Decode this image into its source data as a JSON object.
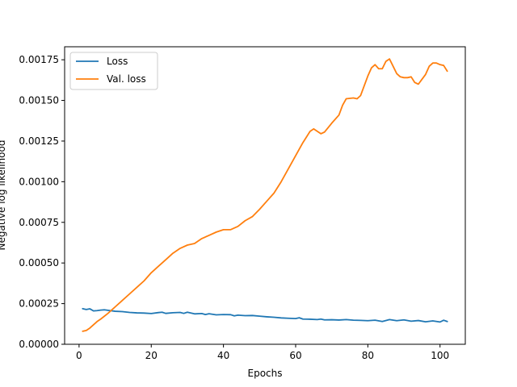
{
  "chart_data": {
    "type": "line",
    "title": "",
    "xlabel": "Epochs",
    "ylabel": "Negative log likelihood",
    "xlim": [
      -4,
      107
    ],
    "ylim": [
      0,
      0.00183
    ],
    "xticks": [
      0,
      20,
      40,
      60,
      80,
      100
    ],
    "yticks": [
      "0.00000",
      "0.00025",
      "0.00050",
      "0.00075",
      "0.00100",
      "0.00125",
      "0.00150",
      "0.00175"
    ],
    "legend": {
      "placement": "upper-left"
    },
    "grid": false,
    "series": [
      {
        "name": "Loss",
        "color": "#1f77b4",
        "x": [
          1,
          2,
          3,
          4,
          5,
          6,
          7,
          8,
          9,
          10,
          12,
          14,
          16,
          18,
          20,
          22,
          23,
          24,
          26,
          28,
          29,
          30,
          32,
          34,
          35,
          36,
          38,
          40,
          42,
          43,
          44,
          46,
          48,
          50,
          52,
          54,
          56,
          58,
          60,
          61,
          62,
          64,
          66,
          67,
          68,
          70,
          72,
          74,
          76,
          78,
          80,
          82,
          84,
          86,
          88,
          90,
          92,
          94,
          96,
          98,
          100,
          101,
          102
        ],
        "y": [
          0.000219,
          0.000214,
          0.000218,
          0.000205,
          0.000207,
          0.00021,
          0.000212,
          0.000209,
          0.000206,
          0.000203,
          0.000201,
          0.000196,
          0.000193,
          0.000192,
          0.000189,
          0.000195,
          0.000197,
          0.00019,
          0.000194,
          0.000196,
          0.00019,
          0.000197,
          0.000187,
          0.000189,
          0.000183,
          0.000188,
          0.000181,
          0.000183,
          0.000182,
          0.000175,
          0.000179,
          0.000176,
          0.000177,
          0.000173,
          0.000169,
          0.000166,
          0.000162,
          0.00016,
          0.000158,
          0.000163,
          0.000155,
          0.000154,
          0.000152,
          0.000155,
          0.00015,
          0.000151,
          0.000149,
          0.000152,
          0.000148,
          0.000147,
          0.000145,
          0.000148,
          0.00014,
          0.000152,
          0.000145,
          0.00015,
          0.000142,
          0.000146,
          0.000138,
          0.000144,
          0.000137,
          0.000148,
          0.00014
        ]
      },
      {
        "name": "Val. loss",
        "color": "#ff7f0e",
        "x": [
          1,
          2,
          3,
          4,
          5,
          6,
          8,
          10,
          12,
          14,
          16,
          18,
          20,
          22,
          24,
          26,
          28,
          30,
          32,
          34,
          36,
          38,
          40,
          42,
          44,
          46,
          48,
          50,
          52,
          54,
          56,
          58,
          60,
          62,
          64,
          65,
          66,
          67,
          68,
          70,
          72,
          73,
          74,
          76,
          77,
          78,
          80,
          81,
          82,
          83,
          84,
          85,
          86,
          87,
          88,
          89,
          90,
          91,
          92,
          93,
          94,
          95,
          96,
          97,
          98,
          99,
          100,
          101,
          102
        ],
        "y": [
          8e-05,
          8.5e-05,
          0.0001,
          0.00012,
          0.00014,
          0.000155,
          0.00019,
          0.00023,
          0.00027,
          0.00031,
          0.00035,
          0.00039,
          0.00044,
          0.00048,
          0.00052,
          0.00056,
          0.00059,
          0.00061,
          0.00062,
          0.00065,
          0.00067,
          0.00069,
          0.000705,
          0.000705,
          0.000725,
          0.00076,
          0.000785,
          0.00083,
          0.00088,
          0.00093,
          0.001,
          0.00108,
          0.00116,
          0.00124,
          0.00131,
          0.001325,
          0.00131,
          0.001295,
          0.001305,
          0.00136,
          0.00141,
          0.00147,
          0.00151,
          0.001515,
          0.00151,
          0.00153,
          0.00165,
          0.0017,
          0.00172,
          0.001695,
          0.001695,
          0.00174,
          0.001755,
          0.00171,
          0.001665,
          0.001645,
          0.00164,
          0.00164,
          0.001645,
          0.00161,
          0.0016,
          0.00163,
          0.00166,
          0.00171,
          0.00173,
          0.00173,
          0.00172,
          0.001715,
          0.00168
        ]
      }
    ]
  }
}
